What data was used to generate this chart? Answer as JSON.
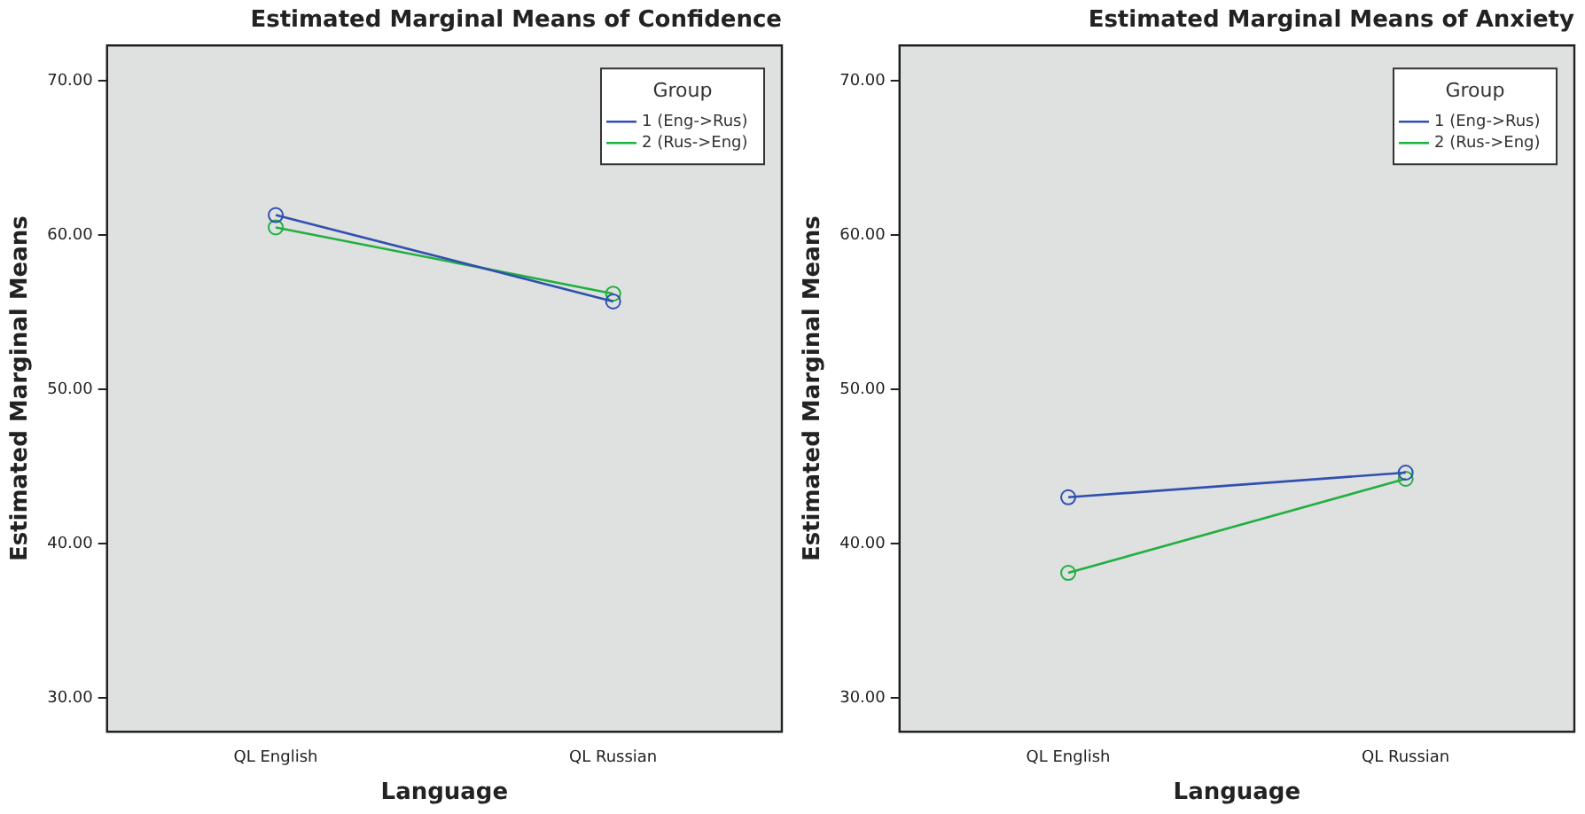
{
  "chart_data": [
    {
      "type": "line",
      "title": "Estimated Marginal Means of Confidence",
      "xlabel": "Language",
      "ylabel": "Estimated Marginal Means",
      "legend_title": "Group",
      "categories": [
        "QL English",
        "QL Russian"
      ],
      "series": [
        {
          "name": "1 (Eng->Rus)",
          "color": "#3050b0",
          "values": [
            61.3,
            55.7
          ]
        },
        {
          "name": "2 (Rus->Eng)",
          "color": "#20b040",
          "values": [
            60.5,
            56.2
          ]
        }
      ],
      "ylim": [
        27.8,
        72.3
      ],
      "yticks": [
        {
          "value": 30,
          "label": "30.00"
        },
        {
          "value": 40,
          "label": "40.00"
        },
        {
          "value": 50,
          "label": "50.00"
        },
        {
          "value": 60,
          "label": "60.00"
        },
        {
          "value": 70,
          "label": "70.00"
        }
      ],
      "grid": false,
      "legend": "top right",
      "marker": "circle",
      "line_style": "solid"
    },
    {
      "type": "line",
      "title": "Estimated Marginal Means of Anxiety",
      "xlabel": "Language",
      "ylabel": "Estimated Marginal Means",
      "legend_title": "Group",
      "categories": [
        "QL English",
        "QL Russian"
      ],
      "series": [
        {
          "name": "1 (Eng->Rus)",
          "color": "#3050b0",
          "values": [
            43.0,
            44.6
          ]
        },
        {
          "name": "2 (Rus->Eng)",
          "color": "#20b040",
          "values": [
            38.1,
            44.2
          ]
        }
      ],
      "ylim": [
        27.8,
        72.3
      ],
      "yticks": [
        {
          "value": 30,
          "label": "30.00"
        },
        {
          "value": 40,
          "label": "40.00"
        },
        {
          "value": 50,
          "label": "50.00"
        },
        {
          "value": 60,
          "label": "60.00"
        },
        {
          "value": 70,
          "label": "70.00"
        }
      ],
      "grid": false,
      "legend": "top right",
      "marker": "circle",
      "line_style": "solid"
    }
  ]
}
